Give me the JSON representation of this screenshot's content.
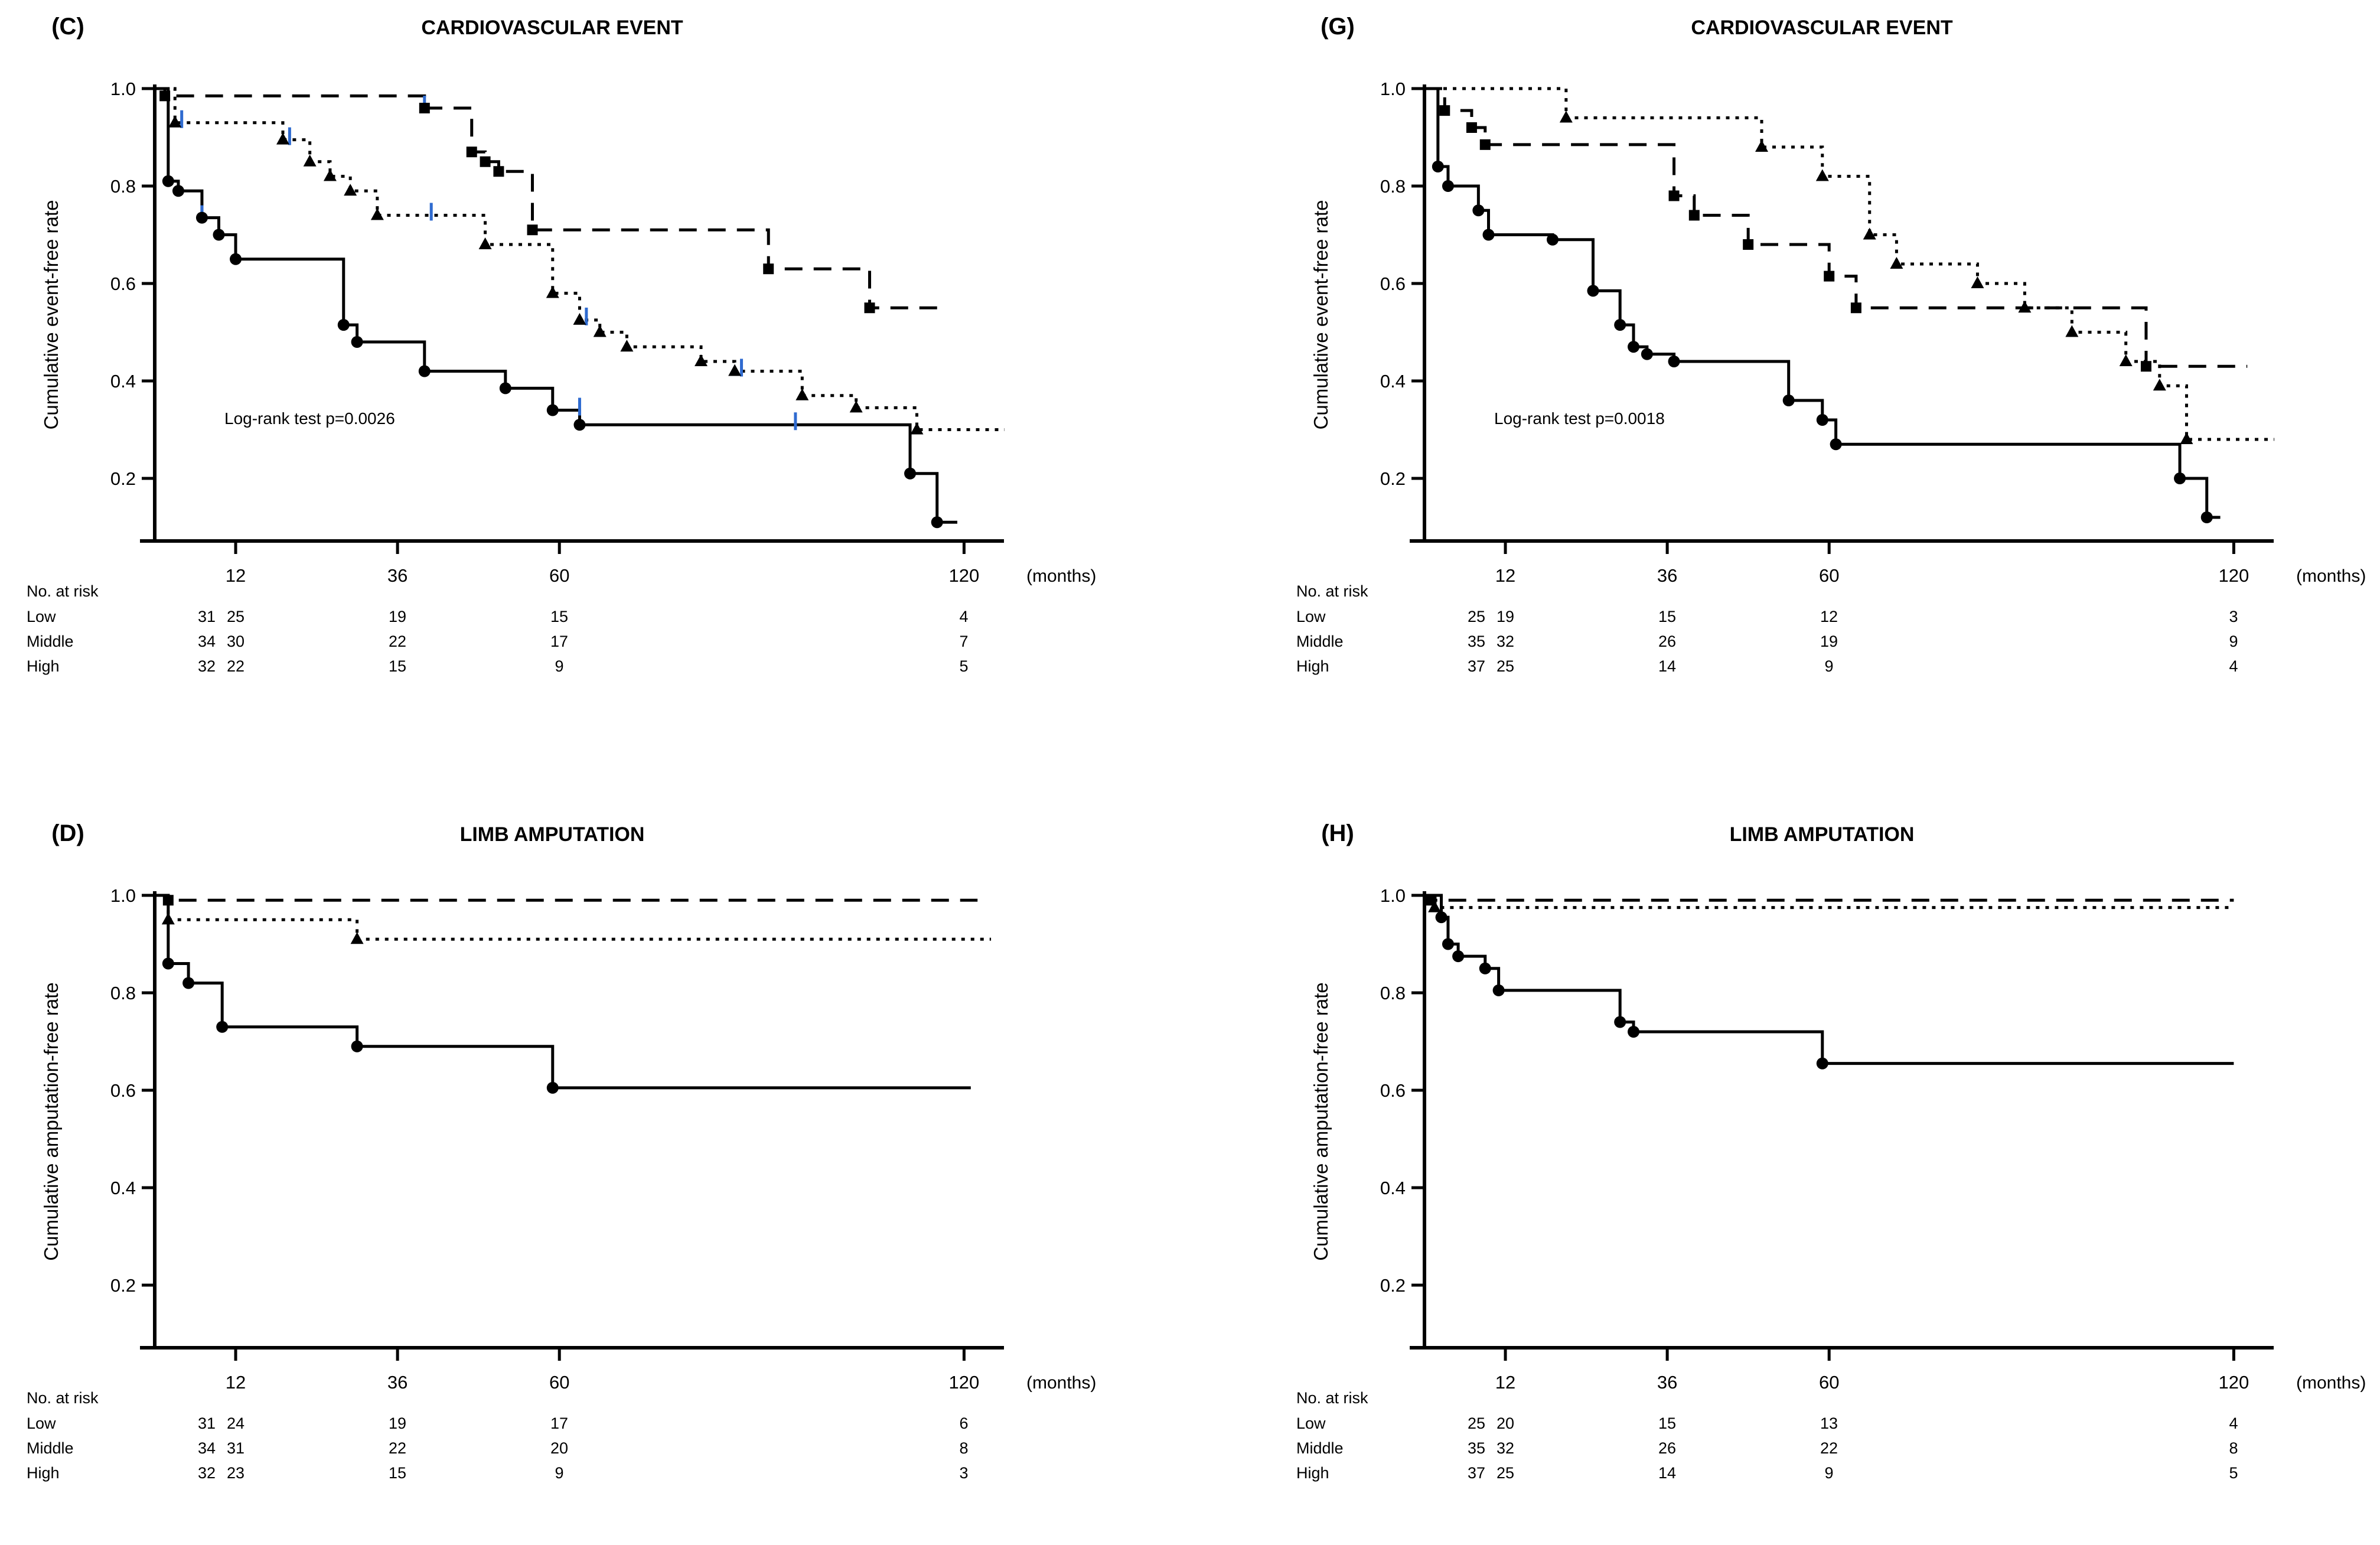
{
  "figure": {
    "background": "#ffffff",
    "line_color": "#000000",
    "censor_color": "#2f6bd0",
    "y_tick_labels": [
      "1.0",
      "0.8",
      "0.6",
      "0.4",
      "0.2"
    ],
    "y_tick_values": [
      1.0,
      0.8,
      0.6,
      0.4,
      0.2
    ],
    "x_tick_values": [
      12,
      36,
      60,
      120
    ]
  },
  "chart_data": [
    {
      "id": "C",
      "panel_label": "(C)",
      "title": "CARDIOVASCULAR EVENT",
      "type": "line",
      "subtype": "kaplan-meier-step",
      "xlabel": "(months)",
      "ylabel": "Cumulative event-free rate",
      "annotation": "Log-rank test p=0.0026",
      "xlim": [
        0,
        126
      ],
      "ylim": [
        0,
        1.0
      ],
      "x_ticks": [
        12,
        36,
        60,
        120
      ],
      "y_ticks": [
        "1.0",
        "0.8",
        "0.6",
        "0.4",
        "0.2"
      ],
      "series": [
        {
          "name": "Low",
          "style": "dashed",
          "marker": "square",
          "end_month": 117,
          "steps": [
            [
              0,
              1.0
            ],
            [
              1.5,
              0.985
            ],
            [
              40,
              0.96
            ],
            [
              47,
              0.87
            ],
            [
              49,
              0.85
            ],
            [
              51,
              0.83
            ],
            [
              56,
              0.71
            ],
            [
              91,
              0.63
            ],
            [
              106,
              0.55
            ]
          ],
          "censors": [
            [
              40,
              0.96
            ]
          ]
        },
        {
          "name": "Middle",
          "style": "dotted",
          "marker": "triangle",
          "end_month": 126,
          "steps": [
            [
              0,
              1.0
            ],
            [
              3,
              0.93
            ],
            [
              19,
              0.895
            ],
            [
              23,
              0.85
            ],
            [
              26,
              0.82
            ],
            [
              29,
              0.79
            ],
            [
              33,
              0.74
            ],
            [
              49,
              0.68
            ],
            [
              59,
              0.58
            ],
            [
              63,
              0.525
            ],
            [
              66,
              0.5
            ],
            [
              70,
              0.47
            ],
            [
              81,
              0.44
            ],
            [
              86,
              0.42
            ],
            [
              96,
              0.37
            ],
            [
              104,
              0.345
            ],
            [
              113,
              0.3
            ]
          ],
          "censors": [
            [
              4,
              0.93
            ],
            [
              20,
              0.895
            ],
            [
              41,
              0.74
            ],
            [
              64,
              0.525
            ],
            [
              87,
              0.42
            ]
          ]
        },
        {
          "name": "High",
          "style": "solid",
          "marker": "circle",
          "end_month": 119,
          "steps": [
            [
              0,
              1.0
            ],
            [
              2,
              0.81
            ],
            [
              3.5,
              0.79
            ],
            [
              7,
              0.735
            ],
            [
              9.5,
              0.7
            ],
            [
              12,
              0.65
            ],
            [
              28,
              0.515
            ],
            [
              30,
              0.48
            ],
            [
              40,
              0.42
            ],
            [
              52,
              0.385
            ],
            [
              59,
              0.34
            ],
            [
              63,
              0.31
            ],
            [
              112,
              0.21
            ],
            [
              116,
              0.11
            ]
          ],
          "censors": [
            [
              7,
              0.735
            ],
            [
              63,
              0.34
            ],
            [
              95,
              0.31
            ]
          ]
        }
      ],
      "risk_table": {
        "header": "No. at risk",
        "time_points": [
          0,
          12,
          36,
          60,
          120
        ],
        "rows": [
          {
            "label": "Low",
            "values": [
              "31",
              "25",
              "19",
              "15",
              "4"
            ]
          },
          {
            "label": "Middle",
            "values": [
              "34",
              "30",
              "22",
              "17",
              "7"
            ]
          },
          {
            "label": "High",
            "values": [
              "32",
              "22",
              "15",
              "9",
              "5"
            ]
          }
        ]
      }
    },
    {
      "id": "G",
      "panel_label": "(G)",
      "title": "CARDIOVASCULAR EVENT",
      "type": "line",
      "subtype": "kaplan-meier-step",
      "xlabel": "(months)",
      "ylabel": "Cumulative event-free rate",
      "annotation": "Log-rank test p=0.0018",
      "xlim": [
        0,
        126
      ],
      "ylim": [
        0,
        1.0
      ],
      "x_ticks": [
        12,
        36,
        60,
        120
      ],
      "y_ticks": [
        "1.0",
        "0.8",
        "0.6",
        "0.4",
        "0.2"
      ],
      "series": [
        {
          "name": "Low",
          "style": "dashed",
          "marker": "square",
          "end_month": 122,
          "steps": [
            [
              0,
              1.0
            ],
            [
              3,
              0.955
            ],
            [
              7,
              0.92
            ],
            [
              9,
              0.885
            ],
            [
              37,
              0.78
            ],
            [
              40,
              0.74
            ],
            [
              48,
              0.68
            ],
            [
              60,
              0.615
            ],
            [
              64,
              0.55
            ],
            [
              107,
              0.43
            ]
          ],
          "censors": []
        },
        {
          "name": "Middle",
          "style": "dotted",
          "marker": "triangle",
          "end_month": 126,
          "steps": [
            [
              0,
              1.0
            ],
            [
              21,
              0.94
            ],
            [
              50,
              0.88
            ],
            [
              59,
              0.82
            ],
            [
              66,
              0.7
            ],
            [
              70,
              0.64
            ],
            [
              82,
              0.6
            ],
            [
              89,
              0.55
            ],
            [
              96,
              0.5
            ],
            [
              104,
              0.44
            ],
            [
              109,
              0.39
            ],
            [
              113,
              0.28
            ]
          ],
          "censors": []
        },
        {
          "name": "High",
          "style": "solid",
          "marker": "circle",
          "end_month": 118,
          "steps": [
            [
              0,
              1.0
            ],
            [
              2,
              0.84
            ],
            [
              3.5,
              0.8
            ],
            [
              8,
              0.75
            ],
            [
              9.5,
              0.7
            ],
            [
              19,
              0.69
            ],
            [
              25,
              0.585
            ],
            [
              29,
              0.515
            ],
            [
              31,
              0.47
            ],
            [
              33,
              0.455
            ],
            [
              37,
              0.44
            ],
            [
              54,
              0.36
            ],
            [
              59,
              0.32
            ],
            [
              61,
              0.27
            ],
            [
              112,
              0.2
            ],
            [
              116,
              0.12
            ]
          ],
          "censors": []
        }
      ],
      "risk_table": {
        "header": "No. at risk",
        "time_points": [
          0,
          12,
          36,
          60,
          120
        ],
        "rows": [
          {
            "label": "Low",
            "values": [
              "25",
              "19",
              "15",
              "12",
              "3"
            ]
          },
          {
            "label": "Middle",
            "values": [
              "35",
              "32",
              "26",
              "19",
              "9"
            ]
          },
          {
            "label": "High",
            "values": [
              "37",
              "25",
              "14",
              "9",
              "4"
            ]
          }
        ]
      }
    },
    {
      "id": "D",
      "panel_label": "(D)",
      "title": "LIMB AMPUTATION",
      "type": "line",
      "subtype": "kaplan-meier-step",
      "xlabel": "(months)",
      "ylabel": "Cumulative amputation-free rate",
      "annotation": "",
      "xlim": [
        0,
        126
      ],
      "ylim": [
        0,
        1.0
      ],
      "x_ticks": [
        12,
        36,
        60,
        120
      ],
      "y_ticks": [
        "1.0",
        "0.8",
        "0.6",
        "0.4",
        "0.2"
      ],
      "series": [
        {
          "name": "Low",
          "style": "dashed",
          "marker": "square",
          "end_month": 122,
          "steps": [
            [
              0,
              1.0
            ],
            [
              2,
              0.99
            ]
          ],
          "censors": []
        },
        {
          "name": "Middle",
          "style": "dotted",
          "marker": "triangle",
          "end_month": 124,
          "steps": [
            [
              0,
              1.0
            ],
            [
              2,
              0.95
            ],
            [
              30,
              0.91
            ]
          ],
          "censors": []
        },
        {
          "name": "High",
          "style": "solid",
          "marker": "circle",
          "end_month": 121,
          "steps": [
            [
              0,
              1.0
            ],
            [
              2,
              0.86
            ],
            [
              5,
              0.82
            ],
            [
              10,
              0.73
            ],
            [
              30,
              0.69
            ],
            [
              59,
              0.605
            ]
          ],
          "censors": []
        }
      ],
      "risk_table": {
        "header": "No. at risk",
        "time_points": [
          0,
          12,
          36,
          60,
          120
        ],
        "rows": [
          {
            "label": "Low",
            "values": [
              "31",
              "24",
              "19",
              "17",
              "6"
            ]
          },
          {
            "label": "Middle",
            "values": [
              "34",
              "31",
              "22",
              "20",
              "8"
            ]
          },
          {
            "label": "High",
            "values": [
              "32",
              "23",
              "15",
              "9",
              "3"
            ]
          }
        ]
      }
    },
    {
      "id": "H",
      "panel_label": "(H)",
      "title": "LIMB AMPUTATION",
      "type": "line",
      "subtype": "kaplan-meier-step",
      "xlabel": "(months)",
      "ylabel": "Cumulative amputation-free rate",
      "annotation": "",
      "xlim": [
        0,
        126
      ],
      "ylim": [
        0,
        1.0
      ],
      "x_ticks": [
        12,
        36,
        60,
        120
      ],
      "y_ticks": [
        "1.0",
        "0.8",
        "0.6",
        "0.4",
        "0.2"
      ],
      "series": [
        {
          "name": "Low",
          "style": "dashed",
          "marker": "square",
          "end_month": 120,
          "steps": [
            [
              0,
              1.0
            ],
            [
              1,
              0.99
            ]
          ],
          "censors": []
        },
        {
          "name": "Middle",
          "style": "dotted",
          "marker": "triangle",
          "end_month": 120,
          "steps": [
            [
              0,
              1.0
            ],
            [
              1.5,
              0.975
            ]
          ],
          "censors": []
        },
        {
          "name": "High",
          "style": "solid",
          "marker": "circle",
          "end_month": 120,
          "steps": [
            [
              0,
              1.0
            ],
            [
              2.5,
              0.955
            ],
            [
              3.5,
              0.9
            ],
            [
              5,
              0.875
            ],
            [
              9,
              0.85
            ],
            [
              11,
              0.805
            ],
            [
              29,
              0.74
            ],
            [
              31,
              0.72
            ],
            [
              59,
              0.655
            ]
          ],
          "censors": []
        }
      ],
      "risk_table": {
        "header": "No. at risk",
        "time_points": [
          0,
          12,
          36,
          60,
          120
        ],
        "rows": [
          {
            "label": "Low",
            "values": [
              "25",
              "20",
              "15",
              "13",
              "4"
            ]
          },
          {
            "label": "Middle",
            "values": [
              "35",
              "32",
              "26",
              "22",
              "8"
            ]
          },
          {
            "label": "High",
            "values": [
              "37",
              "25",
              "14",
              "9",
              "5"
            ]
          }
        ]
      }
    }
  ]
}
